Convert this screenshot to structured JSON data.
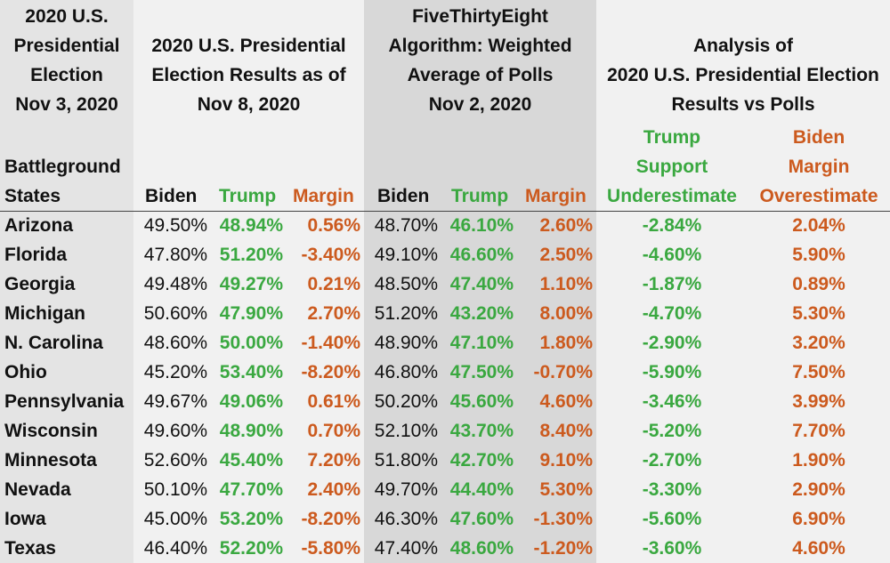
{
  "headers": {
    "col_state": [
      "2020 U.S.",
      "Presidential",
      "Election",
      "Nov 3, 2020"
    ],
    "results": [
      "2020 U.S. Presidential",
      "Election Results as of",
      "Nov 8, 2020"
    ],
    "polls": [
      "FiveThirtyEight",
      "Algorithm: Weighted",
      "Average of Polls",
      "Nov 2, 2020"
    ],
    "analysis": [
      "Analysis of",
      "2020 U.S. Presidential Election",
      "Results vs Polls"
    ],
    "state_label": [
      "Battleground",
      "States"
    ],
    "trump_under": [
      "Trump",
      "Support",
      "Underestimate"
    ],
    "biden_over": [
      "Biden",
      "Margin",
      "Overestimate"
    ],
    "biden": "Biden",
    "trump": "Trump",
    "margin": "Margin"
  },
  "rows": [
    {
      "state": "Arizona",
      "r_biden": "49.50%",
      "r_trump": "48.94%",
      "r_margin": "0.56%",
      "p_biden": "48.70%",
      "p_trump": "46.10%",
      "p_margin": "2.60%",
      "trump_under": "-2.84%",
      "biden_over": "2.04%"
    },
    {
      "state": "Florida",
      "r_biden": "47.80%",
      "r_trump": "51.20%",
      "r_margin": "-3.40%",
      "p_biden": "49.10%",
      "p_trump": "46.60%",
      "p_margin": "2.50%",
      "trump_under": "-4.60%",
      "biden_over": "5.90%"
    },
    {
      "state": "Georgia",
      "r_biden": "49.48%",
      "r_trump": "49.27%",
      "r_margin": "0.21%",
      "p_biden": "48.50%",
      "p_trump": "47.40%",
      "p_margin": "1.10%",
      "trump_under": "-1.87%",
      "biden_over": "0.89%"
    },
    {
      "state": "Michigan",
      "r_biden": "50.60%",
      "r_trump": "47.90%",
      "r_margin": "2.70%",
      "p_biden": "51.20%",
      "p_trump": "43.20%",
      "p_margin": "8.00%",
      "trump_under": "-4.70%",
      "biden_over": "5.30%"
    },
    {
      "state": "N. Carolina",
      "r_biden": "48.60%",
      "r_trump": "50.00%",
      "r_margin": "-1.40%",
      "p_biden": "48.90%",
      "p_trump": "47.10%",
      "p_margin": "1.80%",
      "trump_under": "-2.90%",
      "biden_over": "3.20%"
    },
    {
      "state": "Ohio",
      "r_biden": "45.20%",
      "r_trump": "53.40%",
      "r_margin": "-8.20%",
      "p_biden": "46.80%",
      "p_trump": "47.50%",
      "p_margin": "-0.70%",
      "trump_under": "-5.90%",
      "biden_over": "7.50%"
    },
    {
      "state": "Pennsylvania",
      "r_biden": "49.67%",
      "r_trump": "49.06%",
      "r_margin": "0.61%",
      "p_biden": "50.20%",
      "p_trump": "45.60%",
      "p_margin": "4.60%",
      "trump_under": "-3.46%",
      "biden_over": "3.99%"
    },
    {
      "state": "Wisconsin",
      "r_biden": "49.60%",
      "r_trump": "48.90%",
      "r_margin": "0.70%",
      "p_biden": "52.10%",
      "p_trump": "43.70%",
      "p_margin": "8.40%",
      "trump_under": "-5.20%",
      "biden_over": "7.70%"
    },
    {
      "state": "Minnesota",
      "r_biden": "52.60%",
      "r_trump": "45.40%",
      "r_margin": "7.20%",
      "p_biden": "51.80%",
      "p_trump": "42.70%",
      "p_margin": "9.10%",
      "trump_under": "-2.70%",
      "biden_over": "1.90%"
    },
    {
      "state": "Nevada",
      "r_biden": "50.10%",
      "r_trump": "47.70%",
      "r_margin": "2.40%",
      "p_biden": "49.70%",
      "p_trump": "44.40%",
      "p_margin": "5.30%",
      "trump_under": "-3.30%",
      "biden_over": "2.90%"
    },
    {
      "state": "Iowa",
      "r_biden": "45.00%",
      "r_trump": "53.20%",
      "r_margin": "-8.20%",
      "p_biden": "46.30%",
      "p_trump": "47.60%",
      "p_margin": "-1.30%",
      "trump_under": "-5.60%",
      "biden_over": "6.90%"
    },
    {
      "state": "Texas",
      "r_biden": "46.40%",
      "r_trump": "52.20%",
      "r_margin": "-5.80%",
      "p_biden": "47.40%",
      "p_trump": "48.60%",
      "p_margin": "-1.20%",
      "trump_under": "-3.60%",
      "biden_over": "4.60%"
    }
  ],
  "colors": {
    "trump_green": "#3aa840",
    "margin_orange": "#cc5a1e",
    "text": "#111111"
  }
}
